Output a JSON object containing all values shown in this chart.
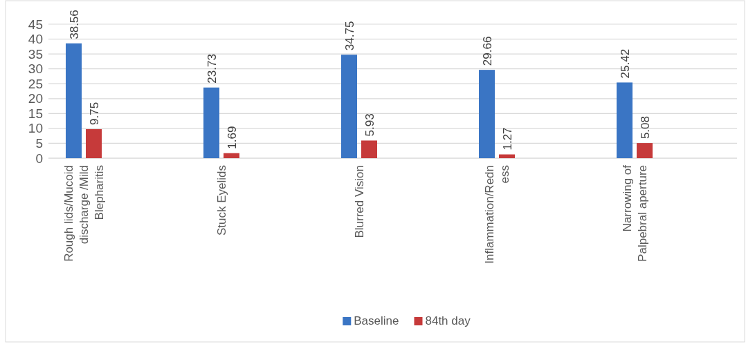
{
  "chart_data": {
    "type": "bar",
    "categories": [
      "Rough lids/Mucoid discharge /Mild Blepharitis",
      "Stuck Eyelids",
      "Blurred Vision",
      "Inflammation/Redness",
      "Narrowing of Palpebral aperture"
    ],
    "series": [
      {
        "name": "Baseline",
        "color": "#3a75c4",
        "values": [
          38.56,
          23.73,
          34.75,
          29.66,
          25.42
        ]
      },
      {
        "name": "84th day",
        "color": "#c63a3a",
        "values": [
          9.75,
          1.69,
          5.93,
          1.27,
          5.08
        ]
      }
    ],
    "ylim": [
      0,
      45
    ],
    "yticks": [
      0,
      5,
      10,
      15,
      20,
      25,
      30,
      35,
      40,
      45
    ],
    "grid": "y",
    "legend": "bottom",
    "data_labels": true
  }
}
